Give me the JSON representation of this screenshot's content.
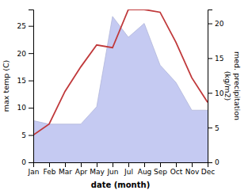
{
  "chart_data": {
    "type": "line",
    "categories": [
      "Jan",
      "Feb",
      "Mar",
      "Apr",
      "May",
      "Jun",
      "Jul",
      "Aug",
      "Sep",
      "Oct",
      "Nov",
      "Dec"
    ],
    "series": [
      {
        "type": "area",
        "axis": "y2",
        "color": "#c5caf2",
        "values": [
          6.0,
          5.5,
          5.5,
          5.5,
          8.0,
          21.0,
          18.0,
          20.0,
          14.0,
          11.5,
          7.5,
          7.5
        ]
      },
      {
        "type": "line",
        "color": "#c0393b",
        "values": [
          5.0,
          7.0,
          13.0,
          17.5,
          21.5,
          21.0,
          28.0,
          28.0,
          27.5,
          22.0,
          15.5,
          11.0
        ]
      }
    ],
    "xlabel": "date (month)",
    "ylabel": "max temp (C)",
    "y2label": "med. precipitation\n(kg/m2)",
    "ylim": [
      0,
      28
    ],
    "yticks": [
      0,
      5,
      10,
      15,
      20,
      25
    ],
    "y2lim": [
      0,
      22
    ],
    "y2ticks": [
      0,
      5,
      10,
      15,
      20
    ],
    "grid": false
  }
}
